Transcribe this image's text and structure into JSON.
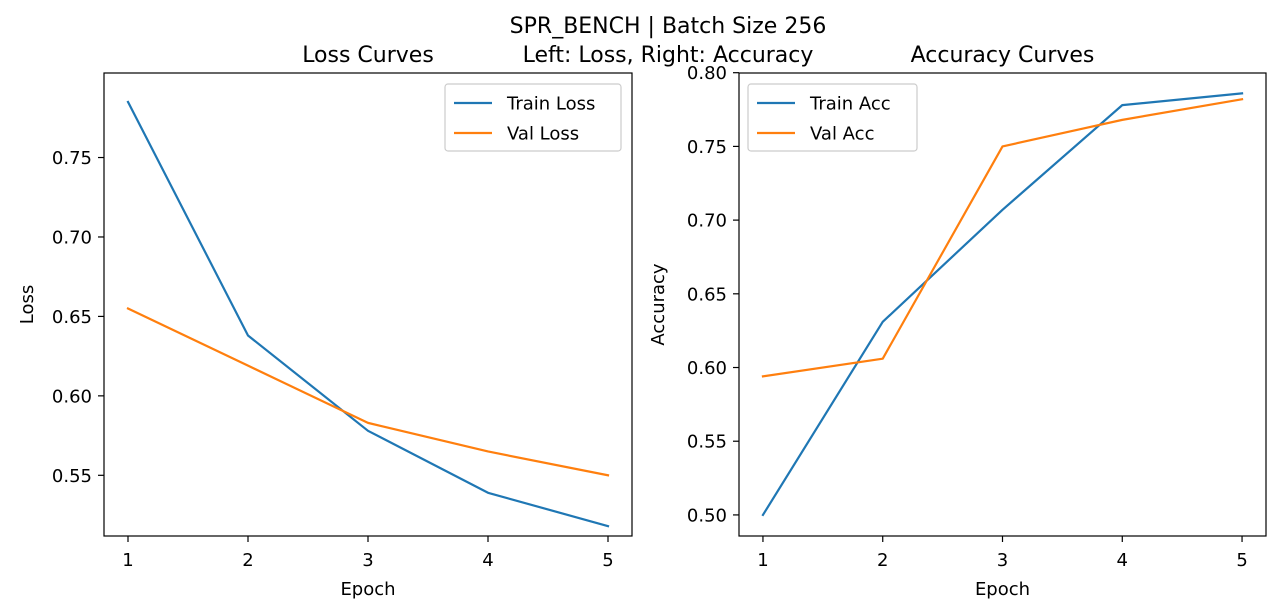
{
  "figure": {
    "suptitle_line1": "SPR_BENCH | Batch Size 256",
    "suptitle_line2": "Left: Loss, Right: Accuracy"
  },
  "colors": {
    "train": "#1f77b4",
    "val": "#ff7f0e"
  },
  "chart_data": [
    {
      "type": "line",
      "title": "Loss Curves",
      "xlabel": "Epoch",
      "ylabel": "Loss",
      "x": [
        1,
        2,
        3,
        4,
        5
      ],
      "xticks": [
        "1",
        "2",
        "3",
        "4",
        "5"
      ],
      "xlim": [
        0.8,
        5.2
      ],
      "ylim": [
        0.5118,
        0.8032
      ],
      "yticks": [
        "0.55",
        "0.60",
        "0.65",
        "0.70",
        "0.75"
      ],
      "ytick_values": [
        0.55,
        0.6,
        0.65,
        0.7,
        0.75
      ],
      "legend_position": "top-right",
      "grid": false,
      "series": [
        {
          "name": "Train Loss",
          "color": "#1f77b4",
          "values": [
            0.785,
            0.638,
            0.578,
            0.539,
            0.518
          ]
        },
        {
          "name": "Val Loss",
          "color": "#ff7f0e",
          "values": [
            0.655,
            0.619,
            0.583,
            0.565,
            0.55
          ]
        }
      ]
    },
    {
      "type": "line",
      "title": "Accuracy Curves",
      "xlabel": "Epoch",
      "ylabel": "Accuracy",
      "x": [
        1,
        2,
        3,
        4,
        5
      ],
      "xticks": [
        "1",
        "2",
        "3",
        "4",
        "5"
      ],
      "xlim": [
        0.8,
        5.2
      ],
      "ylim": [
        0.4857,
        0.7998
      ],
      "yticks": [
        "0.50",
        "0.55",
        "0.60",
        "0.65",
        "0.70",
        "0.75",
        "0.80"
      ],
      "ytick_values": [
        0.5,
        0.55,
        0.6,
        0.65,
        0.7,
        0.75,
        0.8
      ],
      "legend_position": "top-left",
      "grid": false,
      "series": [
        {
          "name": "Train Acc",
          "color": "#1f77b4",
          "values": [
            0.5,
            0.631,
            0.707,
            0.778,
            0.786
          ]
        },
        {
          "name": "Val Acc",
          "color": "#ff7f0e",
          "values": [
            0.594,
            0.606,
            0.75,
            0.768,
            0.782
          ]
        }
      ]
    }
  ]
}
